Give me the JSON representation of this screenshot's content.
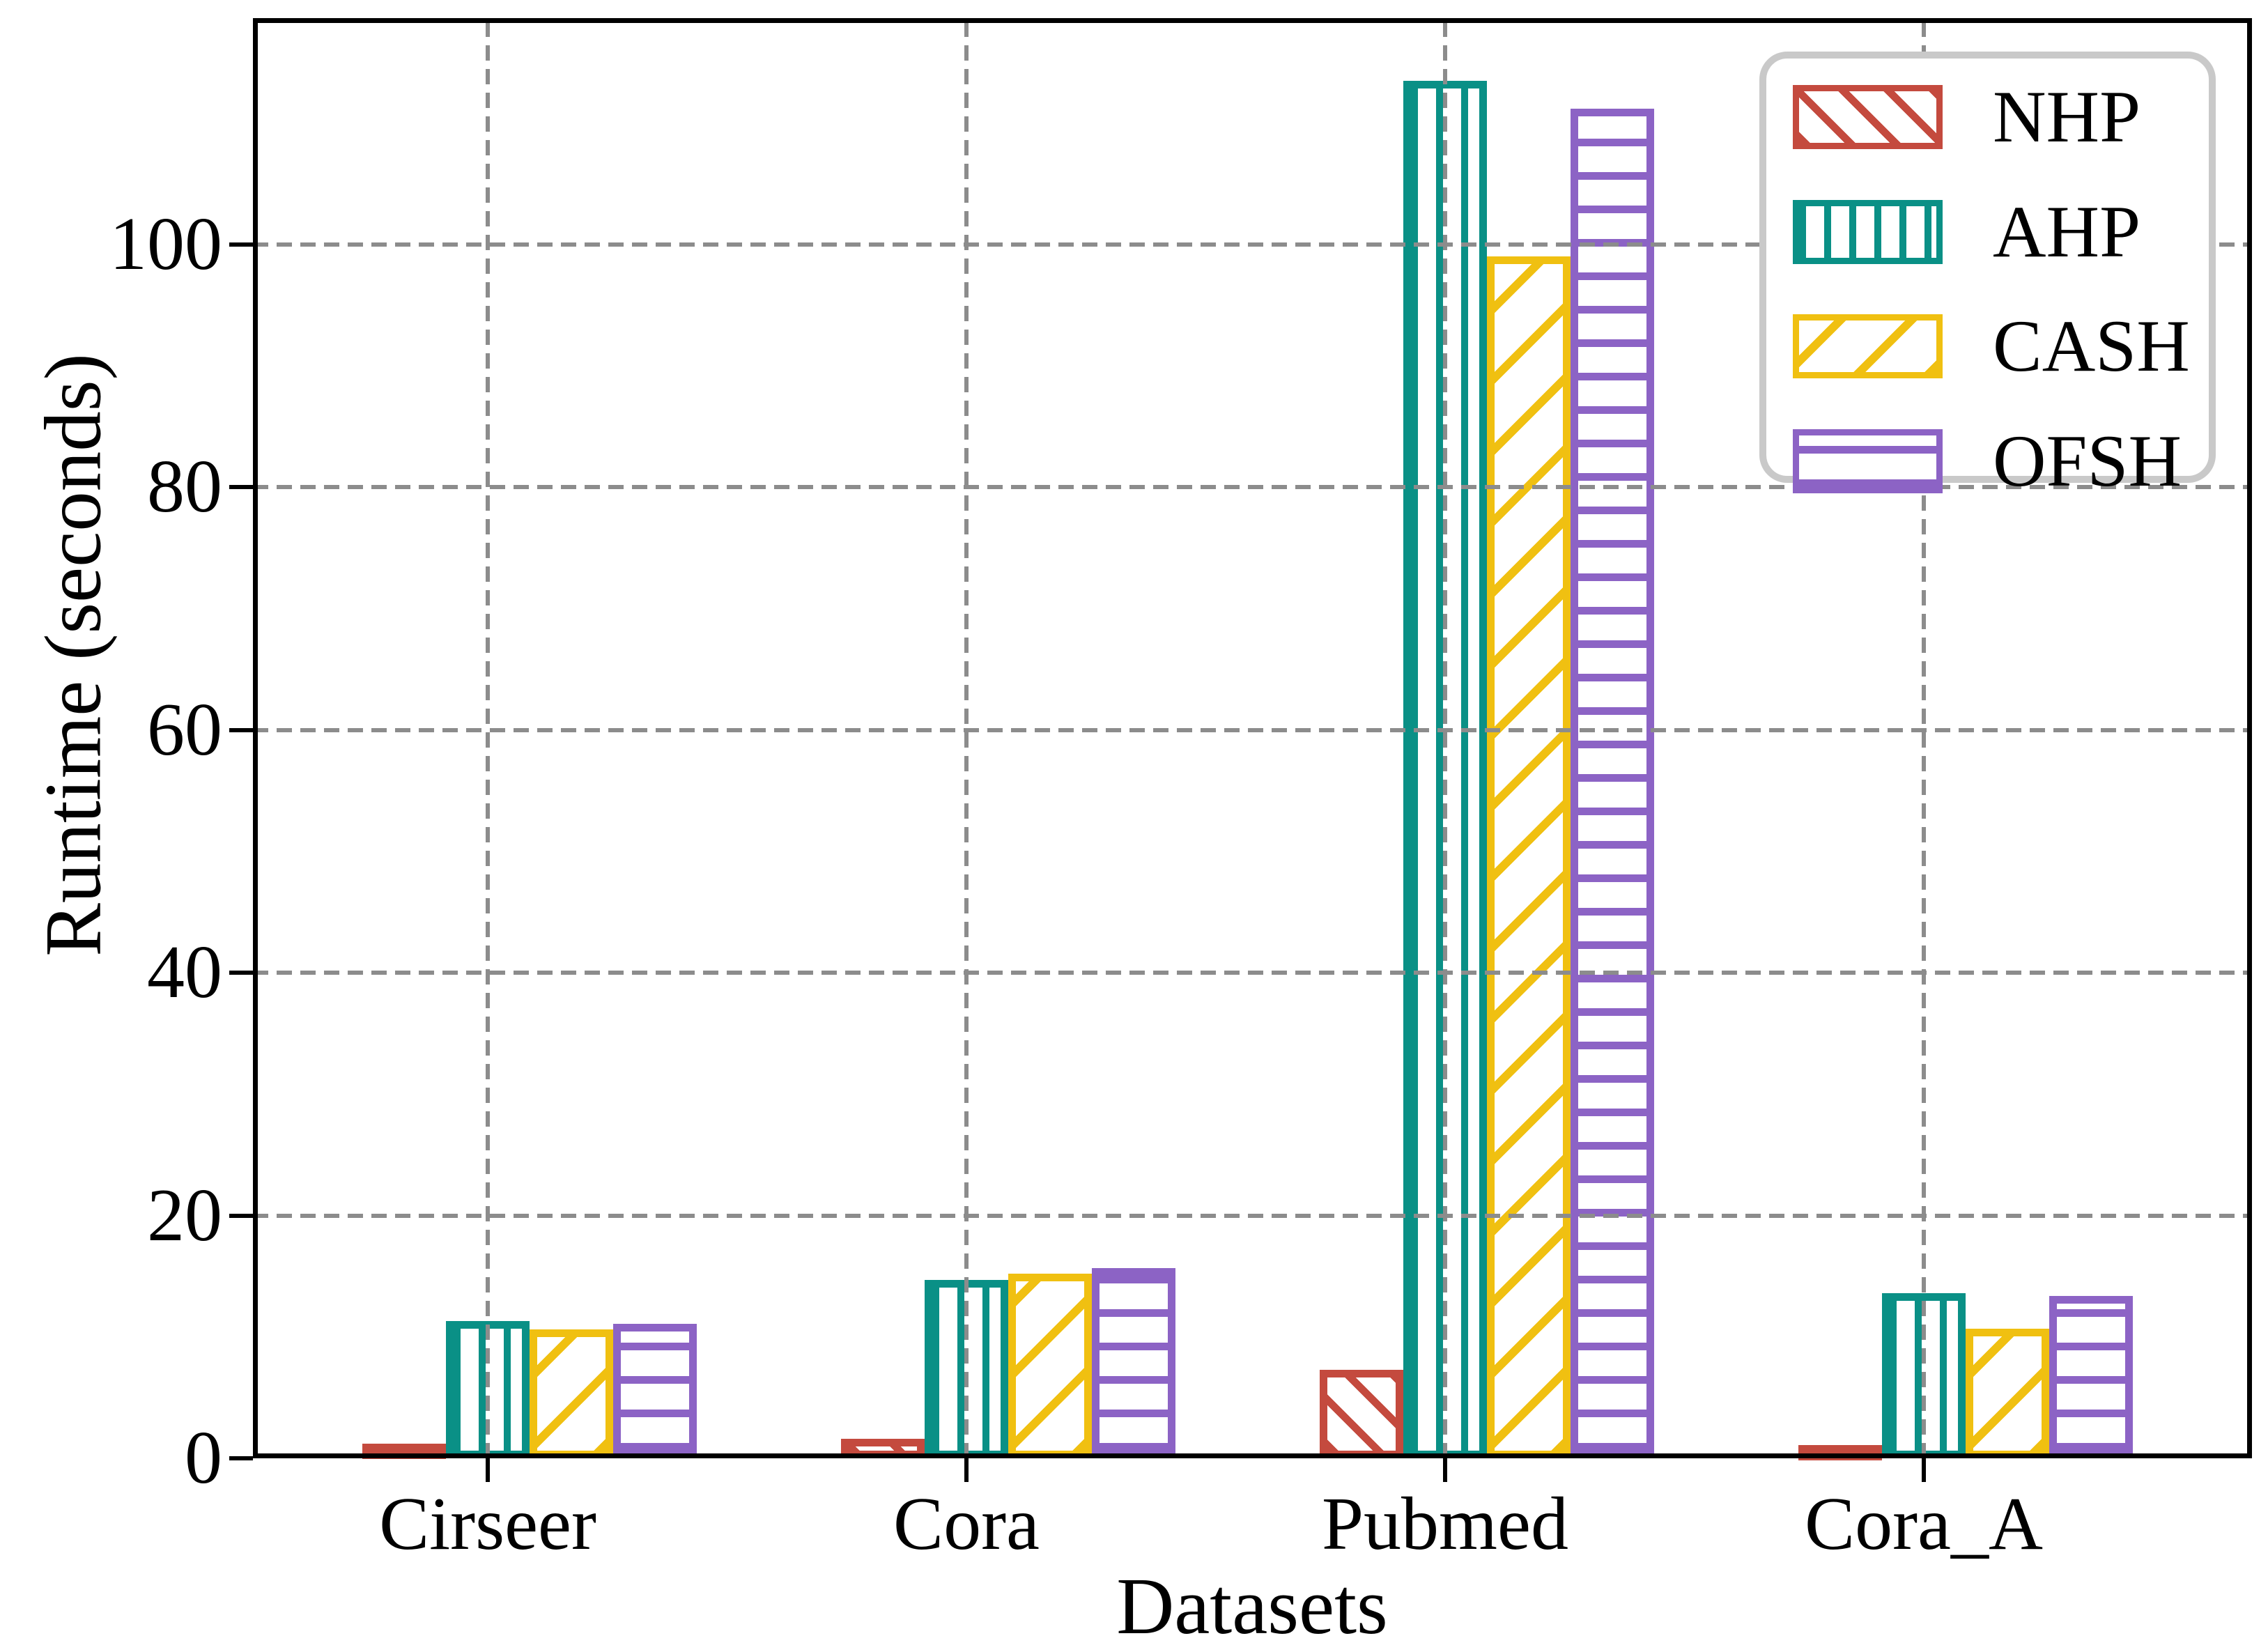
{
  "chart_data": {
    "type": "bar",
    "categories": [
      "Cirseer",
      "Cora",
      "Pubmed",
      "Cora_A"
    ],
    "series": [
      {
        "name": "NHP",
        "color": "#C44A3E",
        "hatch": "diagonal-up",
        "values": [
          1.2,
          1.6,
          7.3,
          1.1
        ]
      },
      {
        "name": "AHP",
        "color": "#0A9086",
        "hatch": "vertical",
        "values": [
          11.3,
          14.7,
          113.5,
          13.6
        ]
      },
      {
        "name": "CASH",
        "color": "#F0C011",
        "hatch": "diagonal-down",
        "values": [
          10.6,
          15.2,
          99.0,
          10.7
        ]
      },
      {
        "name": "OFSH",
        "color": "#8C63C5",
        "hatch": "horizontal",
        "values": [
          11.1,
          15.7,
          111.2,
          13.4
        ]
      }
    ],
    "xlabel": "Datasets",
    "ylabel": "Runtime (seconds)",
    "yticks": [
      0,
      20,
      40,
      60,
      80,
      100
    ],
    "ylim": [
      0,
      118.6
    ],
    "grid": true,
    "grid_style": "dashed",
    "grid_color": "#8C8C8C",
    "legend_position": "upper right",
    "legend_labels": [
      "NHP",
      "AHP",
      "CASH",
      "OFSH"
    ]
  }
}
